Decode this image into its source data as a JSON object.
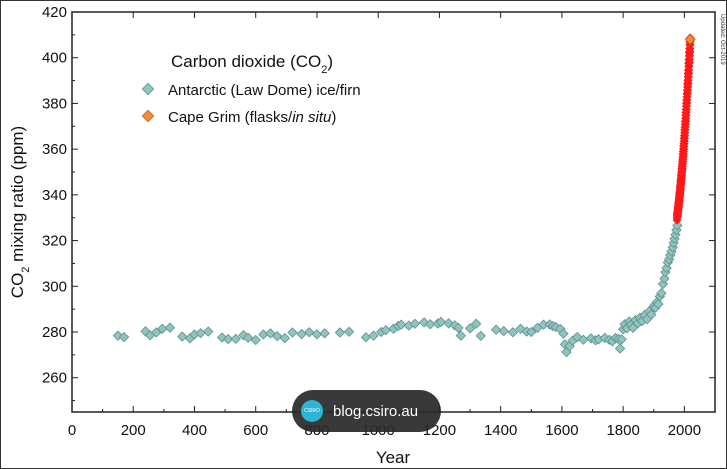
{
  "chart_data": {
    "type": "scatter",
    "title": "",
    "xlabel": "Year",
    "ylabel_main": "CO",
    "ylabel_sub": "2",
    "ylabel_rest": " mixing ratio (ppm)",
    "xlim": [
      0,
      2100
    ],
    "ylim": [
      245,
      420
    ],
    "xticks": [
      0,
      200,
      400,
      600,
      800,
      1000,
      1200,
      1400,
      1600,
      1800,
      2000
    ],
    "yticks": [
      260,
      280,
      300,
      320,
      340,
      360,
      380,
      400,
      420
    ],
    "legend": {
      "title_main": "Carbon dioxide (CO",
      "title_sub": "2",
      "title_end": ")",
      "placement": "top-left"
    },
    "updated_note": "Updated: Oct-2019",
    "series": [
      {
        "name": "Antarctic (Law Dome) ice/firn",
        "color": "#8fc4c0",
        "edge": "#5e8f8c",
        "points": [
          [
            150,
            278.4
          ],
          [
            170,
            277.8
          ],
          [
            240,
            280.3
          ],
          [
            255,
            278.6
          ],
          [
            275,
            279.8
          ],
          [
            295,
            281.4
          ],
          [
            320,
            281.9
          ],
          [
            360,
            278.0
          ],
          [
            385,
            277.2
          ],
          [
            400,
            278.9
          ],
          [
            420,
            279.5
          ],
          [
            445,
            280.2
          ],
          [
            490,
            277.6
          ],
          [
            510,
            276.9
          ],
          [
            535,
            277.0
          ],
          [
            560,
            278.6
          ],
          [
            575,
            277.5
          ],
          [
            600,
            276.5
          ],
          [
            625,
            278.9
          ],
          [
            648,
            279.4
          ],
          [
            670,
            278.2
          ],
          [
            695,
            277.3
          ],
          [
            720,
            279.8
          ],
          [
            750,
            279.1
          ],
          [
            775,
            279.9
          ],
          [
            800,
            279.0
          ],
          [
            825,
            279.4
          ],
          [
            875,
            279.8
          ],
          [
            905,
            280.1
          ],
          [
            960,
            277.7
          ],
          [
            985,
            278.4
          ],
          [
            1010,
            280.0
          ],
          [
            1025,
            280.8
          ],
          [
            1050,
            281.4
          ],
          [
            1065,
            282.6
          ],
          [
            1075,
            283.2
          ],
          [
            1100,
            282.8
          ],
          [
            1120,
            283.6
          ],
          [
            1150,
            284.2
          ],
          [
            1170,
            283.4
          ],
          [
            1195,
            283.7
          ],
          [
            1205,
            284.4
          ],
          [
            1230,
            283.8
          ],
          [
            1250,
            282.9
          ],
          [
            1262,
            281.8
          ],
          [
            1270,
            278.4
          ],
          [
            1300,
            281.6
          ],
          [
            1320,
            283.6
          ],
          [
            1335,
            278.3
          ],
          [
            1385,
            281.0
          ],
          [
            1410,
            280.4
          ],
          [
            1440,
            279.9
          ],
          [
            1465,
            281.4
          ],
          [
            1485,
            280.2
          ],
          [
            1500,
            280.0
          ],
          [
            1520,
            281.8
          ],
          [
            1540,
            283.2
          ],
          [
            1560,
            283.3
          ],
          [
            1570,
            282.6
          ],
          [
            1580,
            282.2
          ],
          [
            1595,
            281.3
          ],
          [
            1605,
            279.3
          ],
          [
            1610,
            274.6
          ],
          [
            1615,
            271.2
          ],
          [
            1625,
            273.8
          ],
          [
            1635,
            276.2
          ],
          [
            1650,
            277.8
          ],
          [
            1670,
            276.6
          ],
          [
            1695,
            277.2
          ],
          [
            1710,
            276.4
          ],
          [
            1720,
            276.8
          ],
          [
            1740,
            277.4
          ],
          [
            1755,
            276.6
          ],
          [
            1765,
            275.9
          ],
          [
            1775,
            277.4
          ],
          [
            1785,
            276.9
          ],
          [
            1790,
            272.8
          ],
          [
            1795,
            276.8
          ],
          [
            1800,
            281.2
          ],
          [
            1805,
            283.4
          ],
          [
            1812,
            281.6
          ],
          [
            1820,
            284.6
          ],
          [
            1825,
            283.1
          ],
          [
            1832,
            281.8
          ],
          [
            1840,
            285.2
          ],
          [
            1848,
            283.8
          ],
          [
            1855,
            286.2
          ],
          [
            1862,
            284.8
          ],
          [
            1870,
            287.4
          ],
          [
            1878,
            285.6
          ],
          [
            1885,
            289.0
          ],
          [
            1892,
            287.6
          ],
          [
            1900,
            291.4
          ],
          [
            1905,
            290.6
          ],
          [
            1910,
            293.0
          ],
          [
            1915,
            292.2
          ],
          [
            1920,
            295.6
          ],
          [
            1925,
            297.0
          ],
          [
            1930,
            301.0
          ],
          [
            1935,
            303.4
          ],
          [
            1938,
            306.2
          ],
          [
            1942,
            308.0
          ],
          [
            1946,
            310.4
          ],
          [
            1950,
            311.8
          ],
          [
            1954,
            313.6
          ],
          [
            1958,
            315.2
          ],
          [
            1962,
            317.0
          ],
          [
            1965,
            319.0
          ],
          [
            1968,
            320.8
          ],
          [
            1971,
            322.6
          ],
          [
            1974,
            324.6
          ],
          [
            1977,
            326.6
          ]
        ]
      },
      {
        "name": "Cape Grim (flasks/in situ)",
        "name_plain": "Cape Grim (flasks/",
        "name_italic": "in situ",
        "name_close": ")",
        "color": "#f5893a",
        "edge": "#c25c10",
        "trend_color": "#ff1a1a",
        "x_start": 1976,
        "x_end": 2019,
        "y_start": 330.0,
        "y_end": 408.0
      }
    ]
  },
  "watermark": {
    "logo_text": "CSIRO",
    "text": "blog.csiro.au"
  }
}
